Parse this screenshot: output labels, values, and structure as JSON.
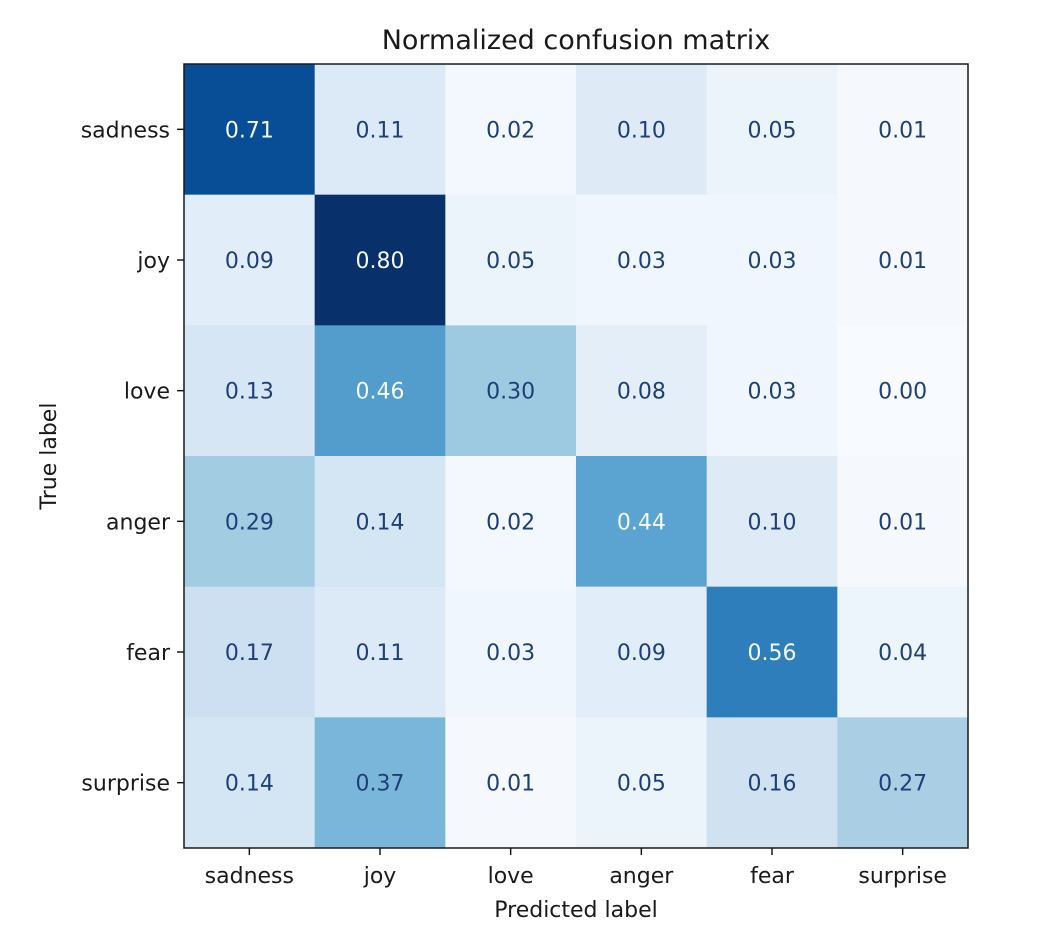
{
  "chart_data": {
    "type": "heatmap",
    "title": "Normalized confusion matrix",
    "xlabel": "Predicted label",
    "ylabel": "True label",
    "x_categories": [
      "sadness",
      "joy",
      "love",
      "anger",
      "fear",
      "surprise"
    ],
    "y_categories": [
      "sadness",
      "joy",
      "love",
      "anger",
      "fear",
      "surprise"
    ],
    "values": [
      [
        0.71,
        0.11,
        0.02,
        0.1,
        0.05,
        0.01
      ],
      [
        0.09,
        0.8,
        0.05,
        0.03,
        0.03,
        0.01
      ],
      [
        0.13,
        0.46,
        0.3,
        0.08,
        0.03,
        0.0
      ],
      [
        0.29,
        0.14,
        0.02,
        0.44,
        0.1,
        0.01
      ],
      [
        0.17,
        0.11,
        0.03,
        0.09,
        0.56,
        0.04
      ],
      [
        0.14,
        0.37,
        0.01,
        0.05,
        0.16,
        0.27
      ]
    ],
    "colormap": "Blues",
    "colorbar": false,
    "grid": false
  }
}
